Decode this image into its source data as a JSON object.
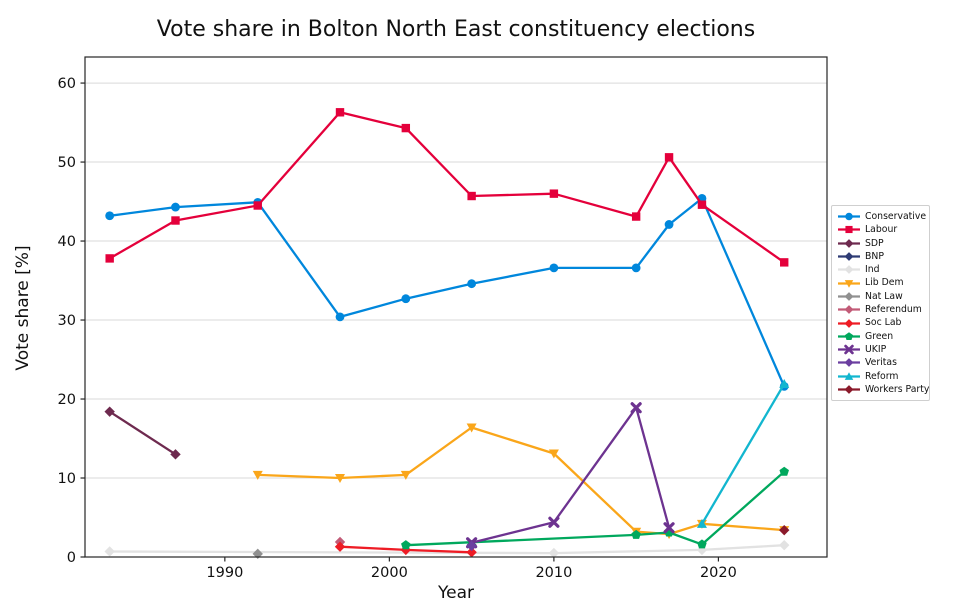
{
  "chart_data": {
    "type": "line",
    "title": "Vote share in Bolton North East constituency elections",
    "xlabel": "Year",
    "ylabel": "Vote share [%]",
    "x_ticks": [
      1990,
      2000,
      2010,
      2020
    ],
    "y_ticks": [
      0,
      10,
      20,
      30,
      40,
      50,
      60
    ],
    "xlim": [
      1981.5,
      2026.6
    ],
    "ylim": [
      0,
      63.3
    ],
    "grid": "horizontal",
    "legend_position": "right-outside",
    "series": [
      {
        "name": "Conservative",
        "color": "#0087DC",
        "marker": "circle",
        "points": [
          [
            1983,
            43.2
          ],
          [
            1987,
            44.3
          ],
          [
            1992,
            44.9
          ],
          [
            1997,
            30.4
          ],
          [
            2001,
            32.7
          ],
          [
            2005,
            34.6
          ],
          [
            2010,
            36.6
          ],
          [
            2015,
            36.6
          ],
          [
            2017,
            42.1
          ],
          [
            2019,
            45.4
          ],
          [
            2024,
            21.6
          ]
        ]
      },
      {
        "name": "Labour",
        "color": "#E4003B",
        "marker": "square",
        "points": [
          [
            1983,
            37.8
          ],
          [
            1987,
            42.6
          ],
          [
            1992,
            44.5
          ],
          [
            1997,
            56.3
          ],
          [
            2001,
            54.3
          ],
          [
            2005,
            45.7
          ],
          [
            2010,
            46.0
          ],
          [
            2015,
            43.1
          ],
          [
            2017,
            50.6
          ],
          [
            2019,
            44.6
          ],
          [
            2024,
            37.3
          ]
        ]
      },
      {
        "name": "SDP",
        "color": "#6E2A4F",
        "marker": "diamond",
        "points": [
          [
            1983,
            18.4
          ],
          [
            1987,
            13.0
          ]
        ]
      },
      {
        "name": "BNP",
        "color": "#2E3B74",
        "marker": "diamond",
        "points": [
          [
            2005,
            1.5
          ]
        ]
      },
      {
        "name": "Ind",
        "color": "#E2E2E2",
        "marker": "diamond",
        "points": [
          [
            1983,
            0.7
          ],
          [
            2010,
            0.5
          ],
          [
            2019,
            0.9
          ],
          [
            2024,
            1.5
          ]
        ]
      },
      {
        "name": "Lib Dem",
        "color": "#FAA61A",
        "marker": "triangle-down",
        "points": [
          [
            1992,
            10.4
          ],
          [
            1997,
            10.0
          ],
          [
            2001,
            10.4
          ],
          [
            2005,
            16.4
          ],
          [
            2010,
            13.1
          ],
          [
            2015,
            3.2
          ],
          [
            2017,
            2.9
          ],
          [
            2019,
            4.2
          ],
          [
            2024,
            3.4
          ]
        ]
      },
      {
        "name": "Nat Law",
        "color": "#909090",
        "marker": "diamond",
        "points": [
          [
            1992,
            0.4
          ]
        ]
      },
      {
        "name": "Referendum",
        "color": "#C25B77",
        "marker": "diamond",
        "points": [
          [
            1997,
            1.9
          ]
        ]
      },
      {
        "name": "Soc Lab",
        "color": "#EE1C25",
        "marker": "diamond",
        "points": [
          [
            1997,
            1.3
          ],
          [
            2001,
            0.9
          ],
          [
            2005,
            0.6
          ]
        ]
      },
      {
        "name": "Green",
        "color": "#00A85D",
        "marker": "pentagon",
        "points": [
          [
            2001,
            1.5
          ],
          [
            2015,
            2.8
          ],
          [
            2017,
            3.1
          ],
          [
            2019,
            1.6
          ],
          [
            2024,
            10.8
          ]
        ]
      },
      {
        "name": "UKIP",
        "color": "#6D3390",
        "marker": "x",
        "points": [
          [
            2005,
            1.8
          ],
          [
            2010,
            4.4
          ],
          [
            2015,
            18.9
          ],
          [
            2017,
            3.7
          ]
        ]
      },
      {
        "name": "Veritas",
        "color": "#6B3FA0",
        "marker": "diamond",
        "points": [
          [
            2005,
            1.4
          ]
        ]
      },
      {
        "name": "Reform",
        "color": "#12B6CF",
        "marker": "triangle-up",
        "points": [
          [
            2019,
            4.2
          ],
          [
            2024,
            21.9
          ]
        ]
      },
      {
        "name": "Workers Party",
        "color": "#8B1A2B",
        "marker": "diamond",
        "points": [
          [
            2024,
            3.4
          ]
        ]
      }
    ]
  }
}
